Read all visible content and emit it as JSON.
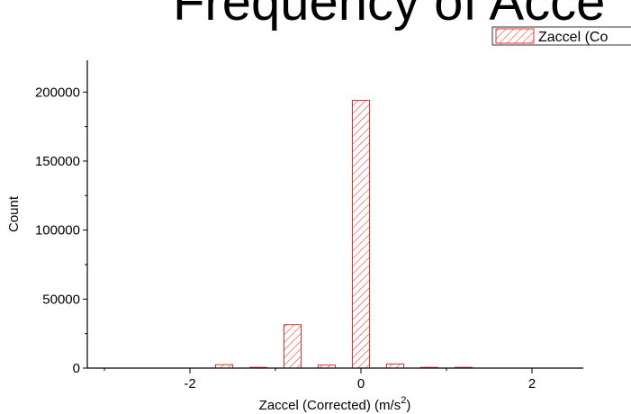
{
  "chart_data": {
    "type": "bar",
    "title": "Frequency of Acce",
    "xlabel": "Zaccel (Corrected) (m/s",
    "xlabel_sup": "2",
    "xlabel_close": ")",
    "ylabel": "Count",
    "xlim": [
      -3.2,
      2.6
    ],
    "ylim": [
      0,
      223000
    ],
    "x_ticks": [
      -2,
      0,
      2
    ],
    "x_tick_labels": [
      "-2",
      "0",
      "2"
    ],
    "y_ticks": [
      0,
      50000,
      100000,
      150000,
      200000
    ],
    "y_tick_labels": [
      "0",
      "50000",
      "100000",
      "150000",
      "200000"
    ],
    "bar_width": 0.2,
    "series": [
      {
        "name": "Zaccel (Co",
        "color": "#e8302a",
        "x": [
          -1.6,
          -1.2,
          -0.8,
          -0.4,
          0.0,
          0.4,
          0.8,
          1.2
        ],
        "values": [
          2500,
          300,
          31500,
          2200,
          194000,
          3000,
          200,
          100
        ]
      }
    ],
    "legend_position": "top-right",
    "grid": false
  }
}
